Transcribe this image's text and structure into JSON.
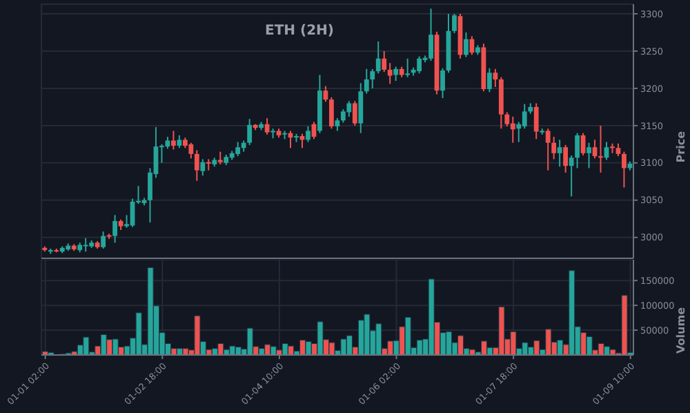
{
  "chart_data": [
    {
      "type": "candlestick",
      "title": "ETH (2H)",
      "ylabel": "Price",
      "grid": true,
      "tick_labels": "y",
      "xlim": [
        "--01-01T00:40",
        "--01-09T11:00"
      ],
      "ylim": [
        2972,
        3313
      ],
      "yticks": [
        3000,
        3050,
        3100,
        3150,
        3200,
        3250,
        3300
      ],
      "x": [
        "--01-01T02:00",
        "--01-01T04:00",
        "--01-01T06:00",
        "--01-01T08:00",
        "--01-01T10:00",
        "--01-01T12:00",
        "--01-01T14:00",
        "--01-01T16:00",
        "--01-01T18:00",
        "--01-01T20:00",
        "--01-01T22:00",
        "--01-02T00:00",
        "--01-02T02:00",
        "--01-02T04:00",
        "--01-02T06:00",
        "--01-02T08:00",
        "--01-02T10:00",
        "--01-02T12:00",
        "--01-02T14:00",
        "--01-02T16:00",
        "--01-02T18:00",
        "--01-02T20:00",
        "--01-02T22:00",
        "--01-03T00:00",
        "--01-03T02:00",
        "--01-03T04:00",
        "--01-03T06:00",
        "--01-03T08:00",
        "--01-03T10:00",
        "--01-03T12:00",
        "--01-03T14:00",
        "--01-03T16:00",
        "--01-03T18:00",
        "--01-03T20:00",
        "--01-03T22:00",
        "--01-04T00:00",
        "--01-04T02:00",
        "--01-04T04:00",
        "--01-04T06:00",
        "--01-04T08:00",
        "--01-04T10:00",
        "--01-04T12:00",
        "--01-04T14:00",
        "--01-04T16:00",
        "--01-04T18:00",
        "--01-04T20:00",
        "--01-04T22:00",
        "--01-05T00:00",
        "--01-05T02:00",
        "--01-05T04:00",
        "--01-05T06:00",
        "--01-05T08:00",
        "--01-05T10:00",
        "--01-05T12:00",
        "--01-05T14:00",
        "--01-05T16:00",
        "--01-05T18:00",
        "--01-05T20:00",
        "--01-05T22:00",
        "--01-06T00:00",
        "--01-06T02:00",
        "--01-06T04:00",
        "--01-06T06:00",
        "--01-06T08:00",
        "--01-06T10:00",
        "--01-06T12:00",
        "--01-06T14:00",
        "--01-06T16:00",
        "--01-06T18:00",
        "--01-06T20:00",
        "--01-06T22:00",
        "--01-07T00:00",
        "--01-07T02:00",
        "--01-07T04:00",
        "--01-07T06:00",
        "--01-07T08:00",
        "--01-07T10:00",
        "--01-07T12:00",
        "--01-07T14:00",
        "--01-07T16:00",
        "--01-07T18:00",
        "--01-07T20:00",
        "--01-07T22:00",
        "--01-08T00:00",
        "--01-08T02:00",
        "--01-08T04:00",
        "--01-08T06:00",
        "--01-08T08:00",
        "--01-08T10:00",
        "--01-08T12:00",
        "--01-08T14:00",
        "--01-08T16:00",
        "--01-08T18:00",
        "--01-08T20:00",
        "--01-08T22:00",
        "--01-09T00:00",
        "--01-09T02:00",
        "--01-09T04:00",
        "--01-09T06:00",
        "--01-09T08:00",
        "--01-09T10:00"
      ],
      "xticks": [
        {
          "value": "--01-01T02:00",
          "label": "01-01 02:00"
        },
        {
          "value": "--01-02T18:00",
          "label": "01-02 18:00"
        },
        {
          "value": "--01-04T10:00",
          "label": "01-04 10:00"
        },
        {
          "value": "--01-06T02:00",
          "label": "01-06 02:00"
        },
        {
          "value": "--01-07T18:00",
          "label": "01-07 18:00"
        },
        {
          "value": "--01-09T10:00",
          "label": "01-09 10:00"
        }
      ],
      "ohlc": [
        [
          2986,
          2988,
          2981,
          2983
        ],
        [
          2981,
          2985,
          2978,
          2983
        ],
        [
          2983,
          2985,
          2980,
          2982
        ],
        [
          2981,
          2988,
          2979,
          2986
        ],
        [
          2984,
          2992,
          2982,
          2989
        ],
        [
          2989,
          2991,
          2982,
          2984
        ],
        [
          2983,
          2993,
          2980,
          2990
        ],
        [
          2989,
          2999,
          2981,
          2990
        ],
        [
          2988,
          2996,
          2986,
          2993
        ],
        [
          2993,
          2995,
          2985,
          2987
        ],
        [
          2987,
          3008,
          2985,
          3002
        ],
        [
          3003,
          3005,
          2998,
          3001
        ],
        [
          3002,
          3030,
          2993,
          3022
        ],
        [
          3022,
          3024,
          3010,
          3015
        ],
        [
          3015,
          3030,
          3013,
          3018
        ],
        [
          3016,
          3052,
          3014,
          3048
        ],
        [
          3047,
          3069,
          3045,
          3049
        ],
        [
          3046,
          3053,
          3043,
          3050
        ],
        [
          3050,
          3093,
          3020,
          3087
        ],
        [
          3085,
          3148,
          3080,
          3122
        ],
        [
          3121,
          3125,
          3100,
          3123
        ],
        [
          3122,
          3135,
          3119,
          3130
        ],
        [
          3130,
          3143,
          3118,
          3123
        ],
        [
          3123,
          3137,
          3120,
          3131
        ],
        [
          3131,
          3134,
          3120,
          3123
        ],
        [
          3125,
          3127,
          3106,
          3112
        ],
        [
          3112,
          3117,
          3076,
          3090
        ],
        [
          3089,
          3105,
          3083,
          3101
        ],
        [
          3101,
          3105,
          3090,
          3099
        ],
        [
          3098,
          3107,
          3095,
          3104
        ],
        [
          3104,
          3115,
          3098,
          3101
        ],
        [
          3100,
          3111,
          3097,
          3108
        ],
        [
          3107,
          3116,
          3104,
          3113
        ],
        [
          3112,
          3128,
          3109,
          3121
        ],
        [
          3120,
          3130,
          3115,
          3127
        ],
        [
          3127,
          3159,
          3124,
          3151
        ],
        [
          3151,
          3152,
          3144,
          3147
        ],
        [
          3147,
          3155,
          3144,
          3152
        ],
        [
          3152,
          3160,
          3138,
          3141
        ],
        [
          3141,
          3146,
          3133,
          3143
        ],
        [
          3143,
          3146,
          3134,
          3137
        ],
        [
          3139,
          3143,
          3132,
          3140
        ],
        [
          3140,
          3143,
          3120,
          3134
        ],
        [
          3134,
          3139,
          3128,
          3136
        ],
        [
          3136,
          3139,
          3120,
          3131
        ],
        [
          3131,
          3149,
          3128,
          3143
        ],
        [
          3152,
          3155,
          3132,
          3135
        ],
        [
          3143,
          3218,
          3140,
          3197
        ],
        [
          3197,
          3203,
          3182,
          3185
        ],
        [
          3185,
          3188,
          3146,
          3149
        ],
        [
          3149,
          3160,
          3143,
          3157
        ],
        [
          3157,
          3172,
          3154,
          3169
        ],
        [
          3168,
          3183,
          3162,
          3180
        ],
        [
          3180,
          3183,
          3150,
          3153
        ],
        [
          3153,
          3207,
          3140,
          3196
        ],
        [
          3196,
          3226,
          3193,
          3212
        ],
        [
          3212,
          3226,
          3200,
          3223
        ],
        [
          3223,
          3263,
          3220,
          3240
        ],
        [
          3240,
          3250,
          3222,
          3225
        ],
        [
          3225,
          3234,
          3206,
          3217
        ],
        [
          3218,
          3229,
          3210,
          3226
        ],
        [
          3226,
          3229,
          3215,
          3218
        ],
        [
          3218,
          3240,
          3215,
          3220
        ],
        [
          3221,
          3228,
          3217,
          3225
        ],
        [
          3223,
          3243,
          3220,
          3240
        ],
        [
          3238,
          3244,
          3235,
          3241
        ],
        [
          3240,
          3307,
          3237,
          3272
        ],
        [
          3272,
          3276,
          3192,
          3197
        ],
        [
          3197,
          3227,
          3187,
          3224
        ],
        [
          3224,
          3300,
          3221,
          3277
        ],
        [
          3277,
          3300,
          3274,
          3298
        ],
        [
          3297,
          3300,
          3240,
          3245
        ],
        [
          3245,
          3275,
          3242,
          3266
        ],
        [
          3266,
          3270,
          3245,
          3248
        ],
        [
          3248,
          3258,
          3245,
          3255
        ],
        [
          3255,
          3260,
          3196,
          3199
        ],
        [
          3199,
          3227,
          3195,
          3221
        ],
        [
          3221,
          3226,
          3202,
          3212
        ],
        [
          3212,
          3215,
          3146,
          3165
        ],
        [
          3165,
          3168,
          3149,
          3152
        ],
        [
          3153,
          3162,
          3127,
          3145
        ],
        [
          3146,
          3155,
          3128,
          3152
        ],
        [
          3149,
          3179,
          3146,
          3169
        ],
        [
          3169,
          3180,
          3166,
          3175
        ],
        [
          3175,
          3180,
          3132,
          3142
        ],
        [
          3141,
          3146,
          3138,
          3143
        ],
        [
          3143,
          3146,
          3090,
          3127
        ],
        [
          3127,
          3135,
          3105,
          3113
        ],
        [
          3113,
          3131,
          3095,
          3121
        ],
        [
          3121,
          3124,
          3087,
          3096
        ],
        [
          3096,
          3110,
          3055,
          3107
        ],
        [
          3107,
          3140,
          3093,
          3137
        ],
        [
          3137,
          3140,
          3110,
          3113
        ],
        [
          3113,
          3127,
          3093,
          3121
        ],
        [
          3121,
          3131,
          3106,
          3109
        ],
        [
          3109,
          3150,
          3087,
          3107
        ],
        [
          3107,
          3128,
          3104,
          3121
        ],
        [
          3122,
          3126,
          3113,
          3120
        ],
        [
          3120,
          3126,
          3109,
          3112
        ],
        [
          3112,
          3115,
          3067,
          3093
        ],
        [
          3093,
          3102,
          3090,
          3099
        ]
      ],
      "colors": [
        "#ef5350",
        "#26a69a",
        "#ef5350",
        "#26a69a",
        "#26a69a",
        "#ef5350",
        "#26a69a",
        "#26a69a",
        "#26a69a",
        "#ef5350",
        "#26a69a",
        "#ef5350",
        "#26a69a",
        "#ef5350",
        "#26a69a",
        "#26a69a",
        "#26a69a",
        "#26a69a",
        "#26a69a",
        "#26a69a",
        "#26a69a",
        "#26a69a",
        "#ef5350",
        "#26a69a",
        "#ef5350",
        "#ef5350",
        "#ef5350",
        "#26a69a",
        "#ef5350",
        "#26a69a",
        "#ef5350",
        "#26a69a",
        "#26a69a",
        "#26a69a",
        "#26a69a",
        "#26a69a",
        "#ef5350",
        "#26a69a",
        "#ef5350",
        "#26a69a",
        "#ef5350",
        "#26a69a",
        "#ef5350",
        "#26a69a",
        "#ef5350",
        "#26a69a",
        "#ef5350",
        "#26a69a",
        "#ef5350",
        "#ef5350",
        "#26a69a",
        "#26a69a",
        "#26a69a",
        "#ef5350",
        "#26a69a",
        "#26a69a",
        "#26a69a",
        "#26a69a",
        "#ef5350",
        "#ef5350",
        "#26a69a",
        "#ef5350",
        "#26a69a",
        "#26a69a",
        "#26a69a",
        "#26a69a",
        "#26a69a",
        "#ef5350",
        "#26a69a",
        "#26a69a",
        "#26a69a",
        "#ef5350",
        "#26a69a",
        "#ef5350",
        "#26a69a",
        "#ef5350",
        "#26a69a",
        "#ef5350",
        "#ef5350",
        "#ef5350",
        "#ef5350",
        "#26a69a",
        "#26a69a",
        "#26a69a",
        "#ef5350",
        "#26a69a",
        "#ef5350",
        "#ef5350",
        "#26a69a",
        "#ef5350",
        "#26a69a",
        "#26a69a",
        "#ef5350",
        "#26a69a",
        "#ef5350",
        "#ef5350",
        "#26a69a",
        "#ef5350",
        "#ef5350",
        "#ef5350",
        "#26a69a"
      ]
    },
    {
      "type": "bar",
      "ylabel": "Volume",
      "grid": true,
      "xlim": [
        "--01-01T00:40",
        "--01-09T11:00"
      ],
      "ylim": [
        0,
        192000
      ],
      "yticks": [
        50000,
        100000,
        150000
      ],
      "x": [
        "--01-01T02:00",
        "--01-01T04:00",
        "--01-01T06:00",
        "--01-01T08:00",
        "--01-01T10:00",
        "--01-01T12:00",
        "--01-01T14:00",
        "--01-01T16:00",
        "--01-01T18:00",
        "--01-01T20:00",
        "--01-01T22:00",
        "--01-02T00:00",
        "--01-02T02:00",
        "--01-02T04:00",
        "--01-02T06:00",
        "--01-02T08:00",
        "--01-02T10:00",
        "--01-02T12:00",
        "--01-02T14:00",
        "--01-02T16:00",
        "--01-02T18:00",
        "--01-02T20:00",
        "--01-02T22:00",
        "--01-03T00:00",
        "--01-03T02:00",
        "--01-03T04:00",
        "--01-03T06:00",
        "--01-03T08:00",
        "--01-03T10:00",
        "--01-03T12:00",
        "--01-03T14:00",
        "--01-03T16:00",
        "--01-03T18:00",
        "--01-03T20:00",
        "--01-03T22:00",
        "--01-04T00:00",
        "--01-04T02:00",
        "--01-04T04:00",
        "--01-04T06:00",
        "--01-04T08:00",
        "--01-04T10:00",
        "--01-04T12:00",
        "--01-04T14:00",
        "--01-04T16:00",
        "--01-04T18:00",
        "--01-04T20:00",
        "--01-04T22:00",
        "--01-05T00:00",
        "--01-05T02:00",
        "--01-05T04:00",
        "--01-05T06:00",
        "--01-05T08:00",
        "--01-05T10:00",
        "--01-05T12:00",
        "--01-05T14:00",
        "--01-05T16:00",
        "--01-05T18:00",
        "--01-05T20:00",
        "--01-05T22:00",
        "--01-06T00:00",
        "--01-06T02:00",
        "--01-06T04:00",
        "--01-06T06:00",
        "--01-06T08:00",
        "--01-06T10:00",
        "--01-06T12:00",
        "--01-06T14:00",
        "--01-06T16:00",
        "--01-06T18:00",
        "--01-06T20:00",
        "--01-06T22:00",
        "--01-07T00:00",
        "--01-07T02:00",
        "--01-07T04:00",
        "--01-07T06:00",
        "--01-07T08:00",
        "--01-07T10:00",
        "--01-07T12:00",
        "--01-07T14:00",
        "--01-07T16:00",
        "--01-07T18:00",
        "--01-07T20:00",
        "--01-07T22:00",
        "--01-08T00:00",
        "--01-08T02:00",
        "--01-08T04:00",
        "--01-08T06:00",
        "--01-08T08:00",
        "--01-08T10:00",
        "--01-08T12:00",
        "--01-08T14:00",
        "--01-08T16:00",
        "--01-08T18:00",
        "--01-08T20:00",
        "--01-08T22:00",
        "--01-09T00:00",
        "--01-09T02:00",
        "--01-09T04:00",
        "--01-09T06:00",
        "--01-09T08:00",
        "--01-09T10:00"
      ],
      "xticks": [
        {
          "value": "--01-01T02:00",
          "label": "01-01 02:00"
        },
        {
          "value": "--01-02T18:00",
          "label": "01-02 18:00"
        },
        {
          "value": "--01-04T10:00",
          "label": "01-04 10:00"
        },
        {
          "value": "--01-06T02:00",
          "label": "01-06 02:00"
        },
        {
          "value": "--01-07T18:00",
          "label": "01-07 18:00"
        },
        {
          "value": "--01-09T10:00",
          "label": "01-09 10:00"
        }
      ],
      "values": [
        7000,
        5000,
        null,
        2000,
        4000,
        7000,
        20000,
        36000,
        6000,
        18000,
        41000,
        31000,
        32000,
        16000,
        18000,
        34000,
        85000,
        21000,
        176000,
        99000,
        45000,
        23000,
        13000,
        13000,
        13000,
        10000,
        79000,
        27000,
        11000,
        13000,
        23000,
        11000,
        18000,
        16000,
        12000,
        54000,
        17000,
        13000,
        21000,
        17000,
        10000,
        23000,
        18000,
        8000,
        30000,
        27000,
        23000,
        67000,
        31000,
        25000,
        9000,
        32000,
        39000,
        16000,
        70000,
        82000,
        49000,
        63000,
        13000,
        28000,
        29000,
        57000,
        76000,
        15000,
        30000,
        32000,
        153000,
        66000,
        45000,
        47000,
        25000,
        39000,
        13000,
        11000,
        6000,
        28000,
        15000,
        15000,
        97000,
        32000,
        47000,
        13000,
        25000,
        16000,
        29000,
        11000,
        52000,
        26000,
        30000,
        21000,
        170000,
        57000,
        45000,
        37000,
        10000,
        23000,
        17000,
        11000,
        4000,
        120000,
        5000
      ],
      "colors": [
        "#ef5350",
        "#26a69a",
        "#ef5350",
        "#26a69a",
        "#26a69a",
        "#ef5350",
        "#26a69a",
        "#26a69a",
        "#26a69a",
        "#ef5350",
        "#26a69a",
        "#ef5350",
        "#26a69a",
        "#ef5350",
        "#26a69a",
        "#26a69a",
        "#26a69a",
        "#26a69a",
        "#26a69a",
        "#26a69a",
        "#26a69a",
        "#26a69a",
        "#ef5350",
        "#26a69a",
        "#ef5350",
        "#ef5350",
        "#ef5350",
        "#26a69a",
        "#ef5350",
        "#26a69a",
        "#ef5350",
        "#26a69a",
        "#26a69a",
        "#26a69a",
        "#26a69a",
        "#26a69a",
        "#ef5350",
        "#26a69a",
        "#ef5350",
        "#26a69a",
        "#ef5350",
        "#26a69a",
        "#ef5350",
        "#26a69a",
        "#ef5350",
        "#26a69a",
        "#ef5350",
        "#26a69a",
        "#ef5350",
        "#ef5350",
        "#26a69a",
        "#26a69a",
        "#26a69a",
        "#ef5350",
        "#26a69a",
        "#26a69a",
        "#26a69a",
        "#26a69a",
        "#ef5350",
        "#ef5350",
        "#26a69a",
        "#ef5350",
        "#26a69a",
        "#26a69a",
        "#26a69a",
        "#26a69a",
        "#26a69a",
        "#ef5350",
        "#26a69a",
        "#26a69a",
        "#26a69a",
        "#ef5350",
        "#26a69a",
        "#ef5350",
        "#26a69a",
        "#ef5350",
        "#26a69a",
        "#ef5350",
        "#ef5350",
        "#ef5350",
        "#ef5350",
        "#26a69a",
        "#26a69a",
        "#26a69a",
        "#ef5350",
        "#26a69a",
        "#ef5350",
        "#ef5350",
        "#26a69a",
        "#ef5350",
        "#26a69a",
        "#26a69a",
        "#ef5350",
        "#26a69a",
        "#ef5350",
        "#ef5350",
        "#26a69a",
        "#ef5350",
        "#ef5350",
        "#ef5350",
        "#26a69a"
      ]
    }
  ]
}
